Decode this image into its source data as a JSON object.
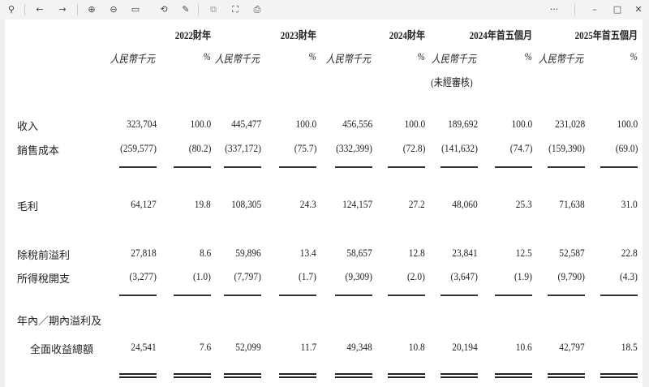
{
  "toolbar": {
    "icons": [
      "pin-icon",
      "back-icon",
      "forward-icon",
      "zoom-in-icon",
      "zoom-out-icon",
      "fit-page-icon",
      "rotate-icon",
      "edit-icon",
      "pages-icon",
      "fullscreen-icon",
      "export-icon",
      "more-icon",
      "minimize-icon",
      "maximize-icon",
      "close-icon"
    ],
    "glyphs": {
      "pin": "⚲",
      "back": "←",
      "forward": "→",
      "zoomin": "⊕",
      "zoomout": "⊖",
      "fit": "▭",
      "rotate": "⟲",
      "edit": "✎",
      "pages": "⧉",
      "fullscreen": "⛶",
      "export": "⎙",
      "more": "···",
      "minimize": "–",
      "maximize": "□",
      "close": "✕"
    }
  },
  "table": {
    "periods": [
      "2022財年",
      "2023財年",
      "2024財年",
      "2024年首五個月",
      "2025年首五個月"
    ],
    "unit_label": "人民幣千元",
    "pct_label": "%",
    "unaudited_label": "(未經審核)",
    "rows": [
      {
        "label": "收入",
        "values": [
          "323,704",
          "100.0",
          "445,477",
          "100.0",
          "456,556",
          "100.0",
          "189,692",
          "100.0",
          "231,028",
          "100.0"
        ]
      },
      {
        "label": "銷售成本",
        "values": [
          "(259,577)",
          "(80.2)",
          "(337,172)",
          "(75.7)",
          "(332,399)",
          "(72.8)",
          "(141,632)",
          "(74.7)",
          "(159,390)",
          "(69.0)"
        ]
      },
      {
        "label": "毛利",
        "values": [
          "64,127",
          "19.8",
          "108,305",
          "24.3",
          "124,157",
          "27.2",
          "48,060",
          "25.3",
          "71,638",
          "31.0"
        ]
      },
      {
        "label": "除稅前溢利",
        "values": [
          "27,818",
          "8.6",
          "59,896",
          "13.4",
          "58,657",
          "12.8",
          "23,841",
          "12.5",
          "52,587",
          "22.8"
        ]
      },
      {
        "label": "所得稅開支",
        "values": [
          "(3,277)",
          "(1.0)",
          "(7,797)",
          "(1.7)",
          "(9,309)",
          "(2.0)",
          "(3,647)",
          "(1.9)",
          "(9,790)",
          "(4.3)"
        ]
      },
      {
        "label": "全面收益總額",
        "label_line1": "年內／期內溢利及",
        "values": [
          "24,541",
          "7.6",
          "52,099",
          "11.7",
          "49,348",
          "10.8",
          "20,194",
          "10.6",
          "42,797",
          "18.5"
        ]
      }
    ]
  }
}
